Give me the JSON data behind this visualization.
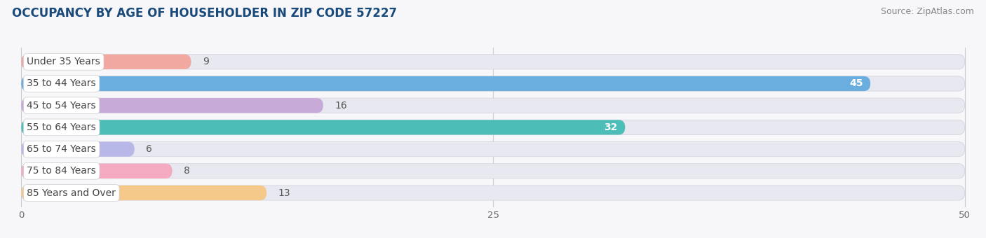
{
  "title": "OCCUPANCY BY AGE OF HOUSEHOLDER IN ZIP CODE 57227",
  "source": "Source: ZipAtlas.com",
  "categories": [
    "Under 35 Years",
    "35 to 44 Years",
    "45 to 54 Years",
    "55 to 64 Years",
    "65 to 74 Years",
    "75 to 84 Years",
    "85 Years and Over"
  ],
  "values": [
    9,
    45,
    16,
    32,
    6,
    8,
    13
  ],
  "bar_colors": [
    "#f0a8a0",
    "#6aaee0",
    "#c8aad8",
    "#4dbdb8",
    "#b8b8e8",
    "#f4aac0",
    "#f5c98a"
  ],
  "bar_bg_color": "#e8e8f0",
  "xlim": [
    0,
    50
  ],
  "xticks": [
    0,
    25,
    50
  ],
  "title_fontsize": 12,
  "source_fontsize": 9,
  "label_fontsize": 10,
  "value_fontsize": 10,
  "background_color": "#f7f7fa",
  "bar_height": 0.68,
  "title_color": "#1a4a7a",
  "label_text_color": "#444444",
  "value_inside_color": "#ffffff",
  "value_outside_color": "#555555"
}
